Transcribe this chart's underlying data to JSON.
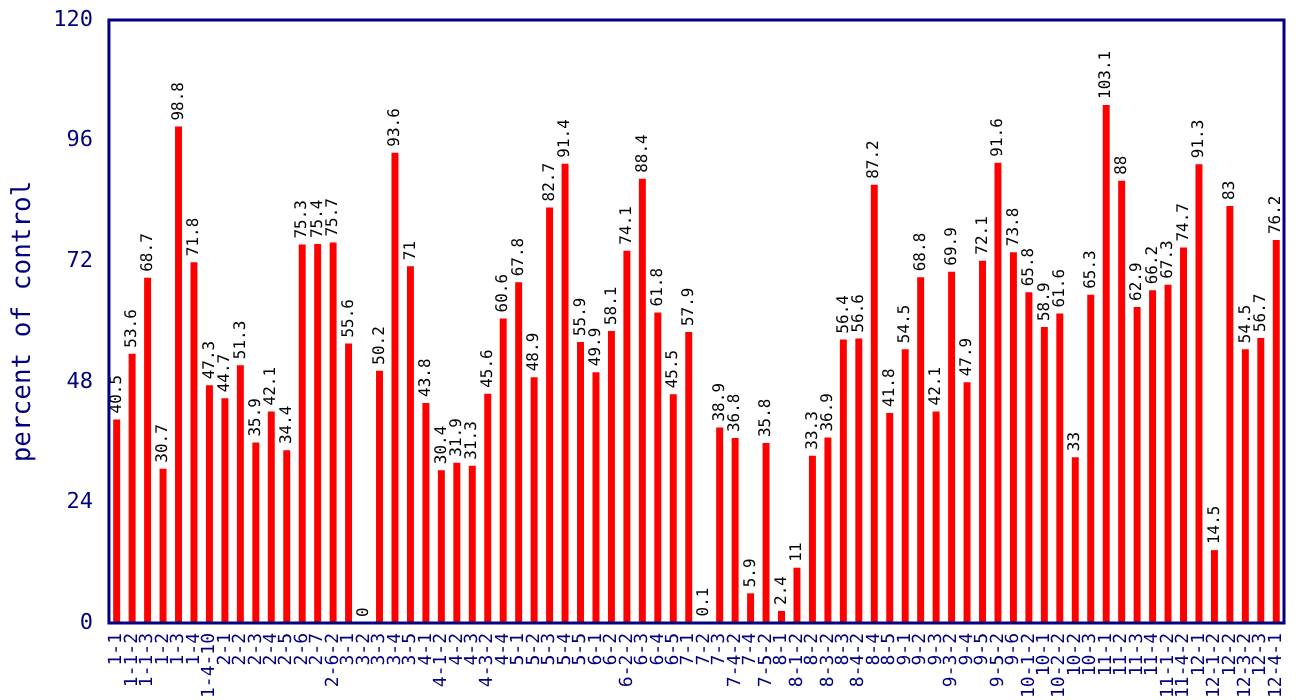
{
  "chart_data": {
    "type": "bar",
    "ylabel": "percent of control",
    "categories": [
      "1-1",
      "1-1-2",
      "1-1-3",
      "1-2",
      "1-3",
      "1-4",
      "1-4-10",
      "2-1",
      "2-2",
      "2-3",
      "2-4",
      "2-5",
      "2-6",
      "2-7",
      "2-6-2",
      "3-1",
      "3-2",
      "3-3",
      "3-4",
      "3-5",
      "4-1",
      "4-1-2",
      "4-2",
      "4-3",
      "4-3-2",
      "4-4",
      "5-1",
      "5-2",
      "5-3",
      "5-4",
      "5-5",
      "6-1",
      "6-2",
      "6-2-2",
      "6-3",
      "6-4",
      "6-5",
      "7-1",
      "7-2",
      "7-3",
      "7-4-2",
      "7-4",
      "7-5-2",
      "8-1",
      "8-1-2",
      "8-2",
      "8-3-2",
      "8-3",
      "8-4-2",
      "8-4",
      "8-5",
      "9-1",
      "9-2",
      "9-3",
      "9-3-2",
      "9-4",
      "9-5",
      "9-5-2",
      "9-6",
      "10-1-2",
      "10-1",
      "10-2-2",
      "10-2",
      "10-3",
      "11-1",
      "11-2",
      "11-3",
      "11-4",
      "11-1-2",
      "11-4-2",
      "12-1",
      "12-1-2",
      "12-2",
      "12-3-2",
      "12-3",
      "12-4-1"
    ],
    "values": [
      40.5,
      53.6,
      68.7,
      30.7,
      98.8,
      71.8,
      47.3,
      44.7,
      51.3,
      35.9,
      42.1,
      34.4,
      75.3,
      75.4,
      75.7,
      55.6,
      0,
      50.2,
      93.6,
      71,
      43.8,
      30.4,
      31.9,
      31.3,
      45.6,
      60.6,
      67.8,
      48.9,
      82.7,
      91.4,
      55.9,
      49.9,
      58.1,
      74.1,
      88.4,
      61.8,
      45.5,
      57.9,
      0.1,
      38.9,
      36.8,
      5.9,
      35.8,
      2.4,
      11,
      33.3,
      36.9,
      56.4,
      56.6,
      87.2,
      41.8,
      54.5,
      68.8,
      42.1,
      69.9,
      47.9,
      72.1,
      91.6,
      73.8,
      65.8,
      58.9,
      61.6,
      33,
      65.3,
      103.1,
      88,
      62.9,
      66.2,
      67.3,
      74.7,
      91.3,
      14.5,
      83,
      54.5,
      56.7,
      76.2
    ],
    "color": "#ff0000",
    "ylim": [
      0,
      120
    ],
    "yticks": [
      0,
      24,
      48,
      72,
      96,
      120
    ],
    "grid": false,
    "legend": false,
    "data_labels": true
  }
}
